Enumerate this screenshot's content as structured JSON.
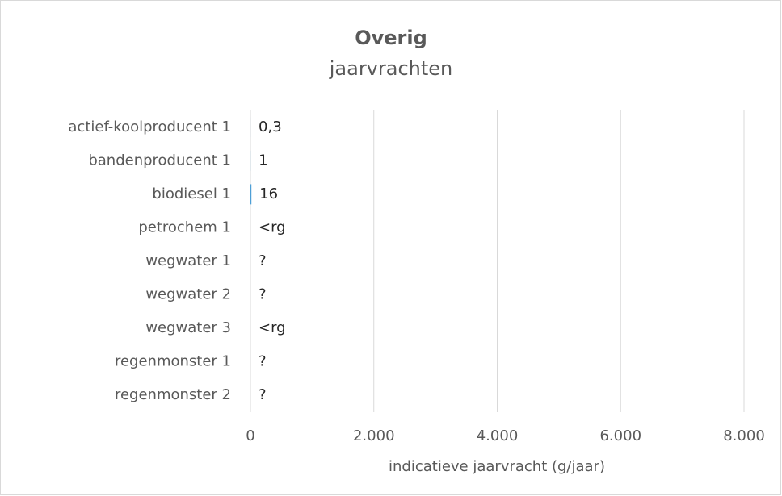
{
  "chart_data": {
    "type": "bar",
    "orientation": "horizontal",
    "title": "Overig",
    "subtitle": "jaarvrachten",
    "categories": [
      "actief-koolproducent 1",
      "bandenproducent 1",
      "biodiesel 1",
      "petrochem 1",
      "wegwater 1",
      "wegwater 2",
      "wegwater 3",
      "regenmonster 1",
      "regenmonster 2"
    ],
    "values": [
      0.3,
      1,
      16,
      null,
      null,
      null,
      null,
      null,
      null
    ],
    "value_labels": [
      "0,3",
      "1",
      "16",
      "<rg",
      "?",
      "?",
      "<rg",
      "?",
      "?"
    ],
    "color": "#4e9fd6",
    "xlabel": "indicatieve jaarvracht (g/jaar)",
    "xlim": [
      0,
      8000
    ],
    "xticks": [
      0,
      {
        "value": 2000,
        "label": "2.000"
      },
      {
        "value": 4000,
        "label": "4.000"
      },
      {
        "value": 6000,
        "label": "6.000"
      },
      {
        "value": 8000,
        "label": "8.000"
      }
    ],
    "grid": true
  }
}
